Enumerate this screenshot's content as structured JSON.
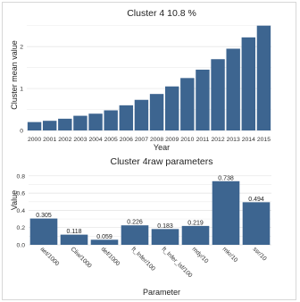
{
  "chart_data": [
    {
      "type": "bar",
      "title": "Cluster  4 10.8 %",
      "xlabel": "Year",
      "ylabel": "Cluster mean value",
      "categories": [
        "2000",
        "2001",
        "2002",
        "2003",
        "2004",
        "2005",
        "2006",
        "2007",
        "2008",
        "2009",
        "2010",
        "2011",
        "2012",
        "2013",
        "2014",
        "2015"
      ],
      "values": [
        0.2,
        0.23,
        0.28,
        0.35,
        0.4,
        0.48,
        0.6,
        0.73,
        0.87,
        1.05,
        1.25,
        1.45,
        1.7,
        1.95,
        2.22,
        2.5
      ],
      "yticks": [
        "0",
        "1",
        "2"
      ],
      "ylim": [
        0,
        2.6
      ],
      "grid": true,
      "bar_color": "#3d6590"
    },
    {
      "type": "bar",
      "title": "Cluster 4raw parameters",
      "xlabel": "Parameter",
      "ylabel": "Value",
      "categories": [
        "aet/1000",
        "Cliw/1000",
        "def/1000",
        "ft_Infer/100",
        "ft_Infer_lsf/100",
        "mdy/10",
        "mkr/10",
        "ssr/10"
      ],
      "values": [
        0.305,
        0.118,
        0.059,
        0.226,
        0.183,
        0.219,
        0.738,
        0.494
      ],
      "data_labels": [
        "0.305",
        "0.118",
        "0.059",
        "0.226",
        "0.183",
        "0.219",
        "0.738",
        "0.494"
      ],
      "yticks": [
        "0.0",
        "0.2",
        "0.4",
        "0.6",
        "0.8"
      ],
      "ylim": [
        0,
        0.85
      ],
      "grid": true,
      "bar_color": "#3d6590"
    }
  ]
}
